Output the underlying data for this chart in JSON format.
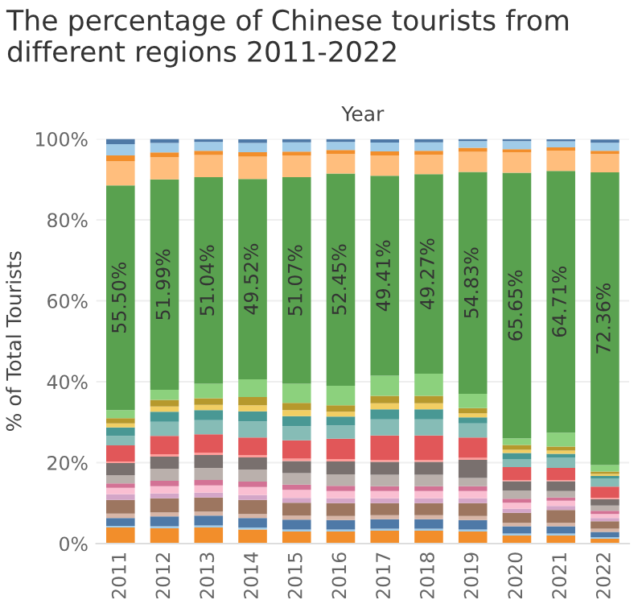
{
  "chart_data": {
    "type": "bar",
    "stacked": true,
    "title": "The percentage of Chinese tourists from different regions 2011-2022",
    "xlabel": "Year",
    "ylabel": "% of Total Tourists",
    "categories": [
      "2011",
      "2012",
      "2013",
      "2014",
      "2015",
      "2016",
      "2017",
      "2018",
      "2019",
      "2020",
      "2021",
      "2022"
    ],
    "ylim": [
      0,
      100
    ],
    "yticks": [
      {
        "value": 0,
        "label": "0%"
      },
      {
        "value": 20,
        "label": "20%"
      },
      {
        "value": 40,
        "label": "40%"
      },
      {
        "value": 60,
        "label": "60%"
      },
      {
        "value": 80,
        "label": "80%"
      },
      {
        "value": 100,
        "label": "100%"
      }
    ],
    "grid": "y",
    "legend": false,
    "series": [
      {
        "color": "#f28e2b",
        "values": [
          4.0,
          3.8,
          4.0,
          3.5,
          3.0,
          3.0,
          3.2,
          3.2,
          3.0,
          2.0,
          2.0,
          1.2
        ]
      },
      {
        "color": "#a0cbe8",
        "values": [
          0.4,
          0.5,
          0.5,
          0.5,
          0.5,
          0.5,
          0.5,
          0.5,
          0.5,
          0.5,
          0.5,
          0.4
        ]
      },
      {
        "color": "#4e79a7",
        "values": [
          1.9,
          2.4,
          2.4,
          2.3,
          2.4,
          2.3,
          2.3,
          2.3,
          2.3,
          1.8,
          1.8,
          1.3
        ]
      },
      {
        "color": "#d7b5a6",
        "values": [
          1.1,
          1.0,
          1.0,
          1.0,
          1.0,
          1.0,
          1.0,
          1.0,
          1.0,
          0.8,
          0.8,
          0.8
        ]
      },
      {
        "color": "#9d7660",
        "values": [
          3.4,
          3.5,
          3.5,
          3.5,
          3.2,
          3.2,
          3.0,
          3.0,
          3.2,
          2.5,
          3.2,
          1.8
        ]
      },
      {
        "color": "#d4a6c8",
        "values": [
          1.4,
          1.2,
          1.2,
          1.2,
          1.2,
          1.2,
          1.2,
          1.2,
          1.2,
          1.0,
          1.0,
          0.8
        ]
      },
      {
        "color": "#fabfd2",
        "values": [
          1.6,
          1.8,
          1.8,
          2.0,
          2.0,
          1.8,
          1.8,
          1.8,
          1.8,
          1.5,
          1.3,
          1.0
        ]
      },
      {
        "color": "#d37295",
        "values": [
          1.1,
          1.3,
          1.3,
          1.3,
          1.3,
          1.3,
          1.2,
          1.2,
          1.2,
          1.0,
          0.8,
          0.8
        ]
      },
      {
        "color": "#bab0ac",
        "values": [
          2.0,
          3.0,
          3.0,
          3.0,
          2.8,
          2.8,
          2.8,
          2.8,
          2.0,
          2.0,
          1.6,
          1.3
        ]
      },
      {
        "color": "#79706e",
        "values": [
          3.0,
          3.0,
          3.2,
          3.0,
          3.0,
          3.2,
          3.2,
          3.2,
          4.5,
          2.3,
          2.4,
          1.6
        ]
      },
      {
        "color": "#ff9d9a",
        "values": [
          0.4,
          0.6,
          0.6,
          0.6,
          0.6,
          0.6,
          0.5,
          0.5,
          0.5,
          0.3,
          0.3,
          0.3
        ]
      },
      {
        "color": "#e15759",
        "values": [
          4.0,
          4.5,
          4.5,
          4.3,
          4.5,
          5.0,
          6.0,
          6.0,
          5.0,
          3.2,
          3.0,
          2.8
        ]
      },
      {
        "color": "#86bcb6",
        "values": [
          2.3,
          3.5,
          3.5,
          4.0,
          3.5,
          3.3,
          4.0,
          4.0,
          3.5,
          2.0,
          2.5,
          2.0
        ]
      },
      {
        "color": "#499894",
        "values": [
          2.1,
          2.5,
          2.5,
          2.5,
          2.5,
          2.2,
          2.5,
          2.5,
          1.5,
          1.5,
          1.0,
          0.6
        ]
      },
      {
        "color": "#f1ce63",
        "values": [
          1.0,
          1.3,
          1.3,
          1.5,
          1.5,
          1.2,
          1.5,
          1.5,
          1.0,
          0.8,
          0.8,
          0.5
        ]
      },
      {
        "color": "#b6992d",
        "values": [
          1.3,
          1.6,
          1.6,
          2.0,
          1.8,
          1.6,
          1.8,
          1.8,
          1.3,
          1.2,
          1.0,
          0.6
        ]
      },
      {
        "color": "#8cd17d",
        "values": [
          2.0,
          2.5,
          3.6,
          4.4,
          4.7,
          4.8,
          5.0,
          5.5,
          3.5,
          1.6,
          3.4,
          1.6
        ]
      },
      {
        "color": "#59a14f",
        "values": [
          55.5,
          51.99,
          51.04,
          49.52,
          51.07,
          52.45,
          49.41,
          49.27,
          54.83,
          65.65,
          64.71,
          72.36
        ],
        "value_labels": [
          "55.50%",
          "51.99%",
          "51.04%",
          "49.52%",
          "51.07%",
          "52.45%",
          "49.41%",
          "49.27%",
          "54.83%",
          "65.65%",
          "64.71%",
          "72.36%"
        ]
      },
      {
        "color": "#ffbe7d",
        "values": [
          6.0,
          5.5,
          5.5,
          5.5,
          5.3,
          4.8,
          5.0,
          4.8,
          5.0,
          5.0,
          5.0,
          4.5
        ]
      },
      {
        "color": "#f28e2b",
        "values": [
          1.4,
          1.2,
          1.0,
          1.1,
          1.0,
          1.0,
          1.0,
          1.0,
          1.0,
          0.8,
          0.8,
          0.8
        ]
      },
      {
        "color": "#a0cbe8",
        "values": [
          2.8,
          2.3,
          2.2,
          2.3,
          2.3,
          2.0,
          2.2,
          2.1,
          1.6,
          2.0,
          1.5,
          2.0
        ]
      },
      {
        "color": "#4e79a7",
        "values": [
          1.3,
          1.0,
          0.7,
          0.9,
          0.8,
          0.7,
          0.8,
          0.8,
          0.5,
          0.5,
          0.5,
          0.8
        ]
      }
    ]
  }
}
